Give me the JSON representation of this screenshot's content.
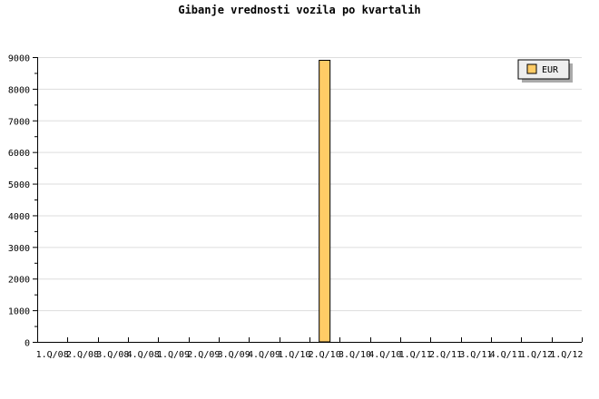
{
  "chart_data": {
    "type": "bar",
    "title": "Gibanje vrednosti vozila po kvartalih",
    "categories": [
      "1.Q/08",
      "2.Q/08",
      "3.Q/08",
      "4.Q/08",
      "1.Q/09",
      "2.Q/09",
      "3.Q/09",
      "4.Q/09",
      "1.Q/10",
      "2.Q/10",
      "3.Q/10",
      "4.Q/10",
      "1.Q/11",
      "2.Q/11",
      "3.Q/11",
      "4.Q/11",
      "1.Q/12",
      "1.Q/12"
    ],
    "series": [
      {
        "name": "EUR",
        "values": [
          0,
          0,
          0,
          0,
          0,
          0,
          0,
          0,
          0,
          8900,
          0,
          0,
          0,
          0,
          0,
          0,
          0,
          0
        ]
      }
    ],
    "ylim": [
      0,
      9000
    ],
    "yticks": [
      0,
      1000,
      2000,
      3000,
      4000,
      5000,
      6000,
      7000,
      8000,
      9000
    ],
    "grid": true,
    "legend": "top-right",
    "colors": {
      "bar": "#ffcc66",
      "grid": "#dddddd",
      "legend_bg": "#eeeeee"
    }
  }
}
